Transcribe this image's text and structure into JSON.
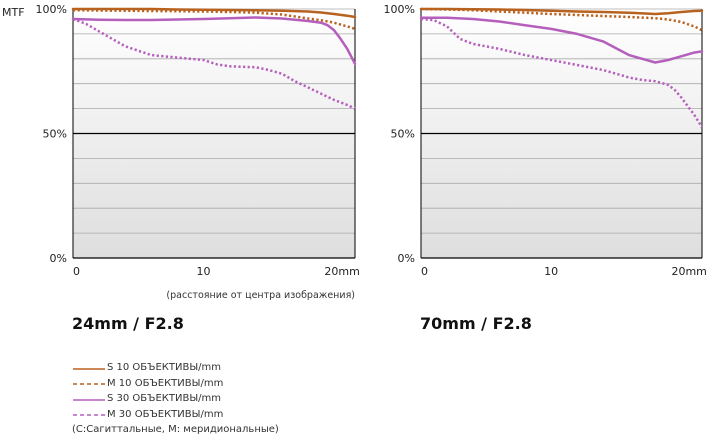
{
  "y_axis_label": "MTF",
  "x_axis_note": "(расстояние от центра изображения)",
  "colors": {
    "s10": "#b8621f",
    "m10": "#b8621f",
    "s30": "#b55fbd",
    "m30": "#b55fbd",
    "grid": "#aaaaaa",
    "axis": "#000000"
  },
  "legend": {
    "items": [
      {
        "key": "s10",
        "label": "S 10 ОБЪЕКТИВЫ/mm",
        "color": "#b8621f",
        "style": "solid",
        "width": 2.5
      },
      {
        "key": "m10",
        "label": "M 10 ОБЪЕКТИВЫ/mm",
        "color": "#b8621f",
        "style": "dotted",
        "width": 2.5
      },
      {
        "key": "s30",
        "label": "S 30 ОБЪЕКТИВЫ/mm",
        "color": "#b55fbd",
        "style": "solid",
        "width": 2.5
      },
      {
        "key": "m30",
        "label": "M 30 ОБЪЕКТИВЫ/mm",
        "color": "#b55fbd",
        "style": "dotted",
        "width": 2.5
      }
    ],
    "footnote": "(С:Сагиттальные, M: меридиональные)"
  },
  "chart_data": [
    {
      "type": "line",
      "title": "24mm / F2.8",
      "xlim": [
        0,
        21.6
      ],
      "ylim": [
        0,
        100
      ],
      "x_ticks": [
        "0",
        "10",
        "20mm"
      ],
      "x_tick_values": [
        0,
        10,
        20
      ],
      "y_ticks": [
        "0%",
        "50%",
        "100%"
      ],
      "y_tick_values": [
        0,
        50,
        100
      ],
      "y_prefix_on_top": "MTF",
      "grid": true,
      "series": [
        {
          "key": "s10",
          "x": [
            0,
            2,
            4,
            6,
            8,
            10,
            12,
            14,
            16,
            18,
            19,
            20,
            21,
            21.6
          ],
          "y": [
            100,
            100,
            100,
            100,
            99.8,
            99.7,
            99.6,
            99.5,
            99.3,
            99.0,
            98.6,
            98.0,
            97.3,
            96.8
          ]
        },
        {
          "key": "m10",
          "x": [
            0,
            2,
            4,
            6,
            8,
            10,
            12,
            14,
            16,
            17,
            18,
            19,
            20,
            21,
            21.6
          ],
          "y": [
            99.5,
            99.4,
            99.3,
            99.2,
            99.1,
            99.0,
            98.8,
            98.5,
            97.8,
            97.0,
            96.2,
            95.5,
            94.5,
            93.0,
            92.0
          ]
        },
        {
          "key": "s30",
          "x": [
            0,
            2,
            4,
            6,
            8,
            10,
            12,
            14,
            16,
            18,
            19,
            19.5,
            20,
            20.5,
            21,
            21.6
          ],
          "y": [
            96,
            95.7,
            95.6,
            95.6,
            95.8,
            96.0,
            96.3,
            96.6,
            96.2,
            95.2,
            94.5,
            93.5,
            91.5,
            88.0,
            84.0,
            78.0
          ]
        },
        {
          "key": "m30",
          "x": [
            0,
            1,
            2,
            3,
            4,
            6,
            8,
            10,
            11,
            12,
            13,
            14,
            15,
            16,
            17,
            18,
            19,
            20,
            21,
            21.6
          ],
          "y": [
            96,
            94,
            91,
            88,
            85,
            81.5,
            80.5,
            79.5,
            77.8,
            77.0,
            76.8,
            76.6,
            75.5,
            74.0,
            71.0,
            68.5,
            66.0,
            63.5,
            61.5,
            60.0
          ]
        }
      ]
    },
    {
      "type": "line",
      "title": "70mm / F2.8",
      "xlim": [
        0,
        21.6
      ],
      "ylim": [
        0,
        100
      ],
      "x_ticks": [
        "0",
        "10",
        "20mm"
      ],
      "x_tick_values": [
        0,
        10,
        20
      ],
      "y_ticks": [
        "0%",
        "50%",
        "100%"
      ],
      "y_tick_values": [
        0,
        50,
        100
      ],
      "grid": true,
      "series": [
        {
          "key": "s10",
          "x": [
            0,
            2,
            4,
            6,
            8,
            10,
            12,
            14,
            16,
            18,
            19,
            20,
            21,
            21.6
          ],
          "y": [
            100,
            100,
            99.9,
            99.8,
            99.6,
            99.3,
            99.0,
            98.8,
            98.5,
            98.0,
            98.3,
            98.8,
            99.2,
            99.3
          ]
        },
        {
          "key": "m10",
          "x": [
            0,
            2,
            4,
            6,
            8,
            10,
            12,
            14,
            16,
            18,
            19,
            20,
            21,
            21.6
          ],
          "y": [
            100,
            99.8,
            99.5,
            99.0,
            98.5,
            98.0,
            97.6,
            97.2,
            96.8,
            96.3,
            95.8,
            94.8,
            93.0,
            91.5
          ]
        },
        {
          "key": "s30",
          "x": [
            0,
            2,
            4,
            6,
            8,
            10,
            12,
            14,
            16,
            17,
            18,
            19,
            20,
            21,
            21.6
          ],
          "y": [
            96.5,
            96.5,
            96.0,
            95.0,
            93.5,
            92.0,
            90.0,
            87.0,
            81.5,
            80.0,
            78.5,
            79.5,
            81.0,
            82.5,
            83.0
          ]
        },
        {
          "key": "m30",
          "x": [
            0,
            1,
            2,
            3,
            4,
            6,
            8,
            10,
            12,
            14,
            15,
            16,
            17,
            18,
            19,
            19.5,
            20,
            20.5,
            21,
            21.6
          ],
          "y": [
            96,
            95.5,
            93,
            88,
            86,
            84,
            81.5,
            79.5,
            77.5,
            75.5,
            74,
            72.5,
            71.5,
            71.0,
            69.5,
            67.5,
            64.5,
            61.0,
            57.5,
            52.5
          ]
        }
      ]
    }
  ]
}
